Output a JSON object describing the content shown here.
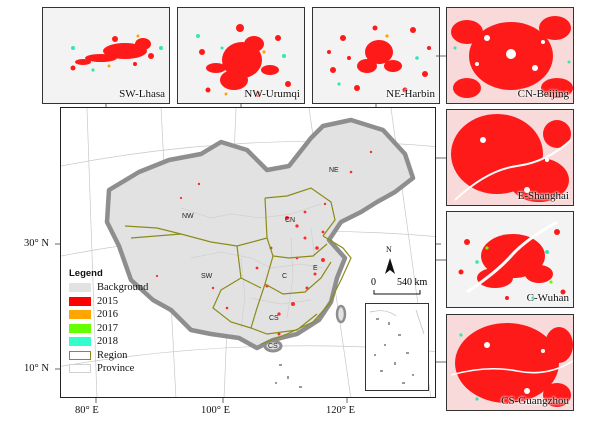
{
  "top_panels": [
    {
      "label": "SW-Lhasa"
    },
    {
      "label": "NW-Urumqi"
    },
    {
      "label": "NE-Harbin"
    }
  ],
  "right_panels": [
    {
      "label": "CN-Beijing"
    },
    {
      "label": "E-Shanghai"
    },
    {
      "label": "C-Wuhan"
    },
    {
      "label": "CS-Guangzhou"
    }
  ],
  "map": {
    "region_labels": {
      "nw": "NW",
      "ne": "NE",
      "cn": "CN",
      "sw": "SW",
      "c": "C",
      "e": "E",
      "cs": "CS"
    },
    "lat_labels": [
      "30° N",
      "10° N"
    ],
    "lon_labels": [
      "80° E",
      "100° E",
      "120° E"
    ],
    "scale": {
      "zero": "0",
      "distance": "540 km",
      "north": "N"
    }
  },
  "legend": {
    "title": "Legend",
    "items": [
      {
        "label": "Background",
        "color": "#e2e2e2"
      },
      {
        "label": "2015",
        "color": "#ff0000"
      },
      {
        "label": "2016",
        "color": "#ffa500"
      },
      {
        "label": "2017",
        "color": "#66ff00"
      },
      {
        "label": "2018",
        "color": "#33ffcc"
      },
      {
        "label": "Region",
        "color": "#8b8b1a"
      },
      {
        "label": "Province",
        "color": "#d8d8d8"
      }
    ]
  }
}
